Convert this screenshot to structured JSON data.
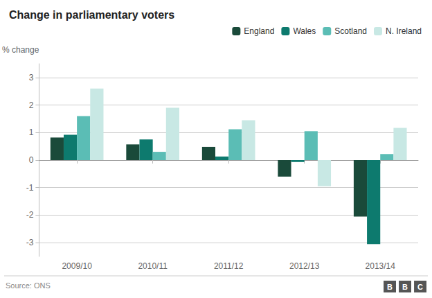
{
  "chart_data": {
    "type": "bar",
    "title": "Change in parliamentary voters",
    "ylabel": "% change",
    "annotations": [
      "Source: ONS",
      "B",
      "B",
      "C"
    ],
    "categories": [
      "2009/10",
      "2010/11",
      "2011/12",
      "2012/13",
      "2013/14"
    ],
    "series": [
      {
        "name": "England",
        "color": "#1a4a3a",
        "values": [
          0.82,
          0.57,
          0.48,
          -0.6,
          -2.05
        ]
      },
      {
        "name": "Wales",
        "color": "#0d7a6e",
        "values": [
          0.92,
          0.75,
          0.13,
          -0.07,
          -3.05
        ]
      },
      {
        "name": "Scotland",
        "color": "#5bbdb5",
        "values": [
          1.6,
          0.3,
          1.12,
          1.05,
          0.22
        ]
      },
      {
        "name": "N. Ireland",
        "color": "#c8e8e4",
        "values": [
          2.6,
          1.9,
          1.45,
          -0.95,
          1.17
        ]
      }
    ],
    "ylim": [
      -3.5,
      3.5
    ],
    "yticks": [
      -3,
      -2,
      -1,
      0,
      1,
      2,
      3
    ],
    "grid": true,
    "legend": "upper right"
  }
}
